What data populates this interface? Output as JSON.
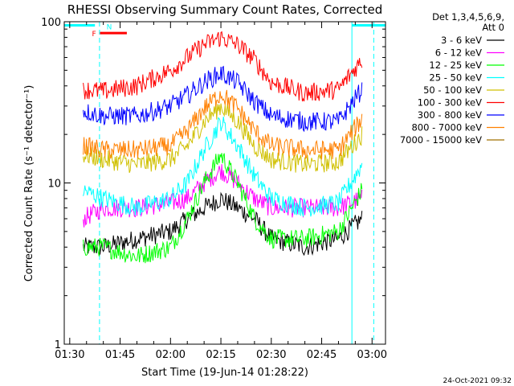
{
  "chart_data": {
    "type": "line",
    "title": "RHESSI Observing Summary Count Rates, Corrected",
    "xlabel": "Start Time (19-Jun-14 01:28:22)",
    "ylabel": "Corrected Count Rate (s⁻¹ detector⁻¹)",
    "y_scale": "log",
    "ylim": [
      1,
      100
    ],
    "xlim": [
      "01:28:22",
      "03:04:00"
    ],
    "x_ticks": [
      "01:30",
      "01:45",
      "02:00",
      "02:15",
      "02:30",
      "02:45",
      "03:00"
    ],
    "y_ticks": [
      "1",
      "10",
      "100"
    ],
    "grid": false,
    "legend_position": "right",
    "legend_header": [
      "Det 1,3,4,5,6,9,",
      "Att 0"
    ],
    "footer_date": "24-Oct-2021 09:32",
    "night_bars": [
      {
        "start": "01:28:22",
        "end": "01:37:30",
        "level": 95,
        "color": "#00ffff"
      },
      {
        "start": "02:54:00",
        "end": "03:04:00",
        "level": 95,
        "color": "#00ffff"
      }
    ],
    "flags": [
      {
        "label": "F",
        "color": "#ff0000",
        "start": "01:39:00",
        "end": "01:47:00",
        "level": 85
      },
      {
        "label": "N",
        "color": "#00ffff",
        "at": "01:39:30"
      }
    ],
    "dashed_markers": [
      {
        "time": "01:38:52",
        "color": "#00ffff"
      },
      {
        "time": "03:00:30",
        "color": "#00ffff"
      }
    ],
    "solid_markers": [
      {
        "time": "02:54:00",
        "color": "#00ffff"
      }
    ],
    "series": [
      {
        "name": "3 - 6 keV",
        "color": "#000000",
        "x": [
          "01:34",
          "01:40",
          "01:50",
          "02:00",
          "02:05",
          "02:10",
          "02:15",
          "02:20",
          "02:25",
          "02:30",
          "02:40",
          "02:50",
          "02:57"
        ],
        "values": [
          4,
          4,
          4.5,
          5,
          6,
          7,
          8,
          7,
          6,
          4.5,
          4,
          4.5,
          6
        ]
      },
      {
        "name": "6 - 12 keV",
        "color": "#ff00ff",
        "x": [
          "01:34",
          "01:40",
          "01:50",
          "02:00",
          "02:05",
          "02:10",
          "02:15",
          "02:20",
          "02:25",
          "02:30",
          "02:40",
          "02:50",
          "02:57"
        ],
        "values": [
          6,
          7,
          7,
          7.5,
          8,
          10,
          12,
          10,
          8,
          7,
          7,
          7,
          8
        ]
      },
      {
        "name": "12 - 25 keV",
        "color": "#00ff00",
        "x": [
          "01:34",
          "01:40",
          "01:50",
          "02:00",
          "02:05",
          "02:10",
          "02:15",
          "02:20",
          "02:25",
          "02:30",
          "02:40",
          "02:50",
          "02:57"
        ],
        "values": [
          4,
          4,
          3.5,
          4,
          6,
          10,
          15,
          10,
          6,
          4.5,
          4.5,
          5,
          9
        ]
      },
      {
        "name": "25 - 50 keV",
        "color": "#00ffff",
        "x": [
          "01:34",
          "01:40",
          "01:50",
          "02:00",
          "02:05",
          "02:10",
          "02:15",
          "02:20",
          "02:25",
          "02:30",
          "02:40",
          "02:50",
          "02:57"
        ],
        "values": [
          9,
          8,
          7,
          8,
          10,
          16,
          24,
          17,
          11,
          8,
          7,
          7.5,
          13
        ]
      },
      {
        "name": "50 - 100 keV",
        "color": "#d0c000",
        "x": [
          "01:34",
          "01:40",
          "01:50",
          "02:00",
          "02:05",
          "02:10",
          "02:15",
          "02:20",
          "02:25",
          "02:30",
          "02:40",
          "02:50",
          "02:57"
        ],
        "values": [
          15,
          14,
          13,
          14,
          17,
          24,
          30,
          24,
          17,
          14,
          13,
          13.5,
          20
        ]
      },
      {
        "name": "100 - 300 keV",
        "color": "#ff0000",
        "x": [
          "01:34",
          "01:40",
          "01:50",
          "02:00",
          "02:05",
          "02:10",
          "02:15",
          "02:20",
          "02:25",
          "02:30",
          "02:40",
          "02:50",
          "02:57"
        ],
        "values": [
          38,
          37,
          40,
          50,
          60,
          72,
          80,
          72,
          58,
          42,
          36,
          38,
          58
        ]
      },
      {
        "name": "300 - 800 keV",
        "color": "#0000ff",
        "x": [
          "01:34",
          "01:40",
          "01:50",
          "02:00",
          "02:05",
          "02:10",
          "02:15",
          "02:20",
          "02:25",
          "02:30",
          "02:40",
          "02:50",
          "02:57"
        ],
        "values": [
          28,
          26,
          26,
          30,
          35,
          42,
          48,
          42,
          32,
          26,
          24,
          24,
          38
        ]
      },
      {
        "name": "800 - 7000 keV",
        "color": "#ff8000",
        "x": [
          "01:34",
          "01:40",
          "01:50",
          "02:00",
          "02:05",
          "02:10",
          "02:15",
          "02:20",
          "02:25",
          "02:30",
          "02:40",
          "02:50",
          "02:57"
        ],
        "values": [
          17,
          16,
          16,
          17,
          21,
          29,
          36,
          29,
          21,
          17,
          16,
          16,
          25
        ]
      },
      {
        "name": "7000 - 15000 keV",
        "color": "#a07000",
        "x": [],
        "values": []
      }
    ]
  }
}
